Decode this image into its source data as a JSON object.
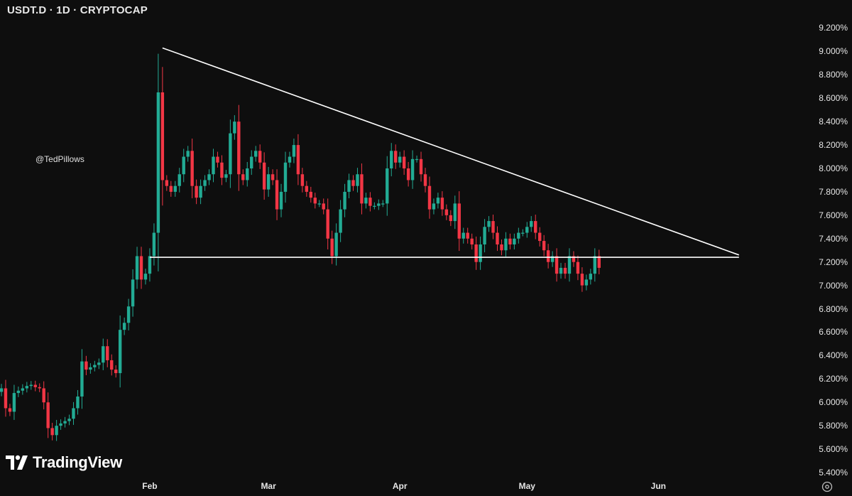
{
  "header": {
    "title": "USDT.D · 1D · CRYPTOCAP"
  },
  "watermark": {
    "handle": "@TedPillows",
    "brand": "TradingView",
    "logo_icon": "tradingview-logo-icon"
  },
  "colors": {
    "background": "#0e0e0e",
    "up": "#22ab94",
    "down": "#f23645",
    "trendline": "#ffffff"
  },
  "chart_data": {
    "type": "candlestick",
    "title": "USDT.D · 1D · CRYPTOCAP",
    "ylim": [
      5.4,
      9.3
    ],
    "y_ticks": [
      "9.200%",
      "9.000%",
      "8.800%",
      "8.600%",
      "8.400%",
      "8.200%",
      "8.000%",
      "7.800%",
      "7.600%",
      "7.400%",
      "7.200%",
      "7.000%",
      "6.800%",
      "6.600%",
      "6.400%",
      "6.200%",
      "6.000%",
      "5.800%",
      "5.600%",
      "5.400%"
    ],
    "y_tick_values": [
      9.2,
      9.0,
      8.8,
      8.6,
      8.4,
      8.2,
      8.0,
      7.8,
      7.6,
      7.4,
      7.2,
      7.0,
      6.8,
      6.6,
      6.4,
      6.2,
      6.0,
      5.8,
      5.6,
      5.4
    ],
    "x_ticks": [
      "Feb",
      "Mar",
      "Apr",
      "May",
      "Jun"
    ],
    "x_tick_index": [
      35,
      63,
      94,
      124,
      155
    ],
    "first_date": "2024-12-28",
    "closes": [
      6.12,
      5.95,
      5.92,
      6.08,
      6.1,
      6.12,
      6.14,
      6.15,
      6.13,
      6.12,
      6.0,
      5.78,
      5.72,
      5.8,
      5.82,
      5.84,
      5.86,
      5.95,
      6.05,
      6.35,
      6.28,
      6.3,
      6.32,
      6.34,
      6.48,
      6.36,
      6.28,
      6.25,
      6.62,
      6.68,
      6.82,
      7.05,
      7.25,
      7.05,
      7.1,
      7.25,
      7.45,
      8.65,
      7.9,
      7.85,
      7.8,
      7.85,
      7.95,
      8.1,
      8.15,
      7.85,
      7.75,
      7.85,
      7.9,
      7.95,
      8.1,
      8.05,
      7.92,
      7.95,
      8.3,
      8.4,
      7.95,
      7.9,
      8.0,
      8.1,
      8.15,
      8.05,
      7.82,
      7.95,
      7.9,
      7.65,
      7.8,
      8.05,
      8.1,
      8.2,
      7.95,
      7.85,
      7.8,
      7.75,
      7.7,
      7.7,
      7.65,
      7.4,
      7.25,
      7.45,
      7.65,
      7.8,
      7.9,
      7.85,
      7.95,
      7.7,
      7.75,
      7.68,
      7.68,
      7.7,
      7.7,
      8.0,
      8.15,
      8.05,
      8.1,
      8.0,
      7.9,
      8.08,
      8.08,
      7.95,
      7.85,
      7.65,
      7.7,
      7.75,
      7.65,
      7.6,
      7.55,
      7.7,
      7.4,
      7.45,
      7.4,
      7.35,
      7.2,
      7.35,
      7.5,
      7.55,
      7.45,
      7.35,
      7.3,
      7.4,
      7.35,
      7.4,
      7.45,
      7.45,
      7.5,
      7.55,
      7.45,
      7.38,
      7.3,
      7.2,
      7.25,
      7.1,
      7.15,
      7.1,
      7.25,
      7.2,
      7.1,
      7.0,
      7.05,
      7.1,
      7.25,
      7.15
    ],
    "trendlines": [
      {
        "name": "descending-resistance",
        "from": {
          "index": 38,
          "value": 9.03
        },
        "to": {
          "index": 174,
          "value": 7.26
        }
      },
      {
        "name": "horizontal-support",
        "from": {
          "index": 35,
          "value": 7.24
        },
        "to": {
          "index": 174,
          "value": 7.24
        }
      }
    ]
  }
}
